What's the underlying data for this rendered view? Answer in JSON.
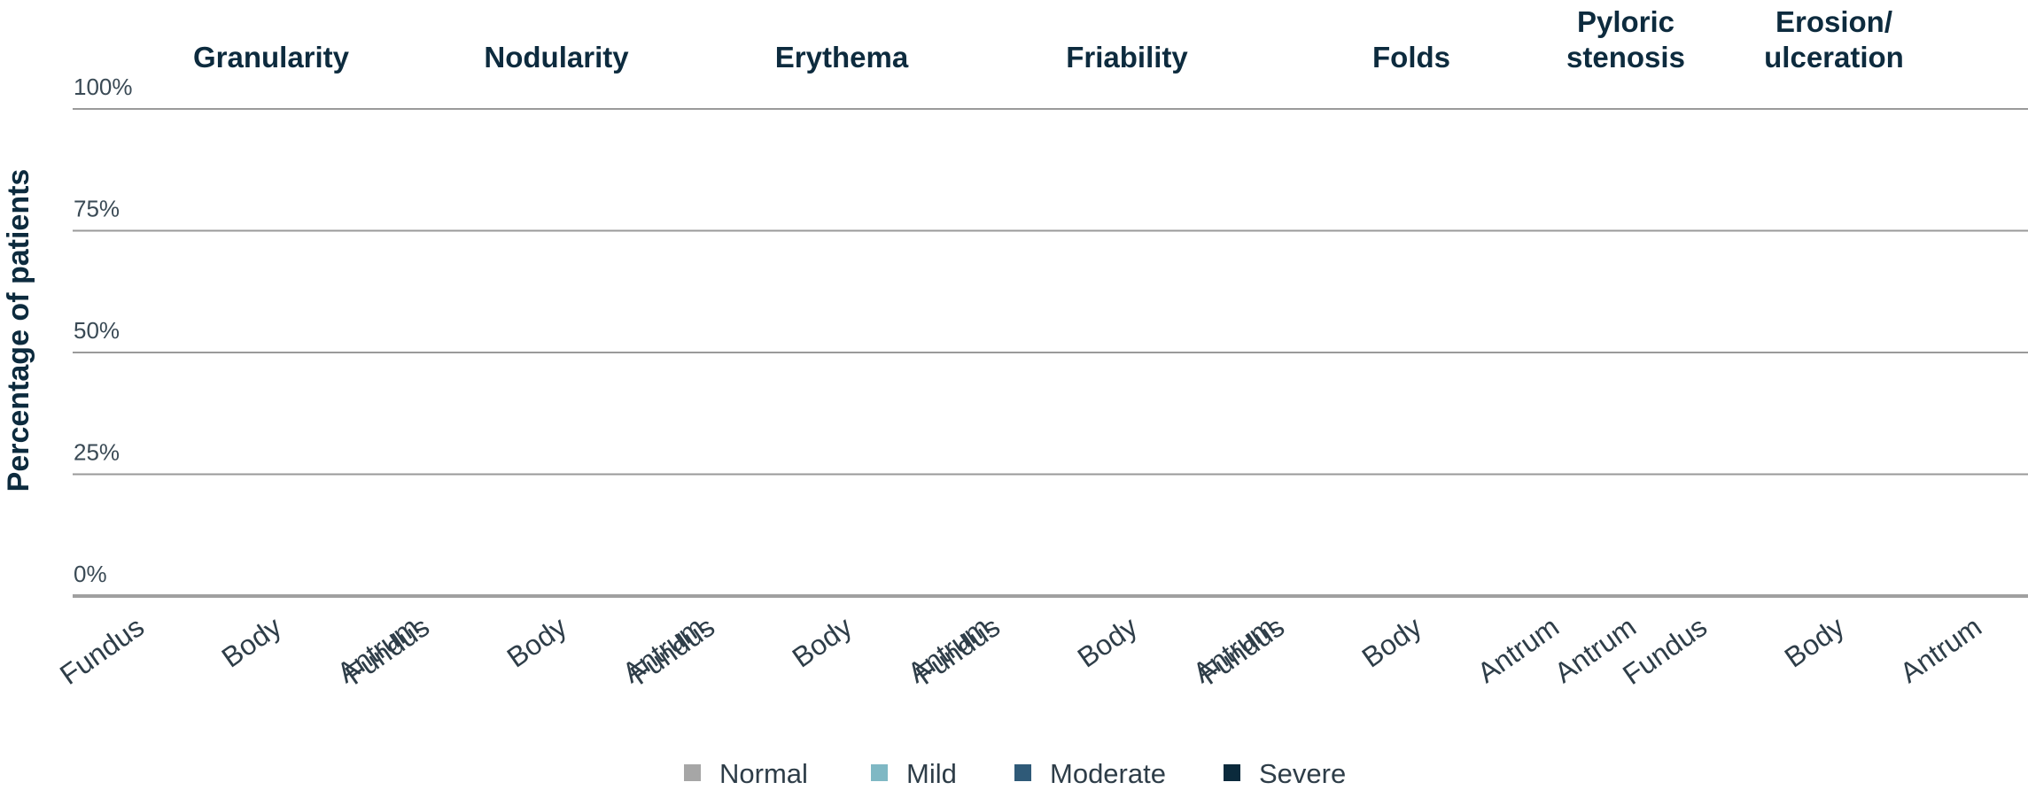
{
  "chart_data": {
    "type": "bar",
    "stacked": true,
    "ylabel": "Percentage of patients",
    "yticks": [
      "0%",
      "25%",
      "50%",
      "75%",
      "100%"
    ],
    "ylim": [
      0,
      100
    ],
    "grid": true,
    "legend_position": "bottom",
    "groups": [
      {
        "title": [
          "Granularity"
        ],
        "categories": [
          "Fundus",
          "Body",
          "Antrum"
        ]
      },
      {
        "title": [
          "Nodularity"
        ],
        "categories": [
          "Fundus",
          "Body",
          "Antrum"
        ]
      },
      {
        "title": [
          "Erythema"
        ],
        "categories": [
          "Fundus",
          "Body",
          "Antrum"
        ]
      },
      {
        "title": [
          "Friability"
        ],
        "categories": [
          "Fundus",
          "Body",
          "Antrum"
        ]
      },
      {
        "title": [
          "Folds"
        ],
        "categories": [
          "Fundus",
          "Body",
          "Antrum"
        ]
      },
      {
        "title": [
          "Pyloric",
          "stenosis"
        ],
        "categories": [
          "Antrum"
        ]
      },
      {
        "title": [
          "Erosion/",
          "ulceration"
        ],
        "categories": [
          "Fundus",
          "Body",
          "Antrum"
        ]
      }
    ],
    "series": [
      {
        "name": "Normal",
        "color": "#a6a6a6",
        "values": []
      },
      {
        "name": "Mild",
        "color": "#7fb8c4",
        "values": []
      },
      {
        "name": "Moderate",
        "color": "#2f5a78",
        "values": []
      },
      {
        "name": "Severe",
        "color": "#0b2a3c",
        "values": []
      }
    ]
  }
}
